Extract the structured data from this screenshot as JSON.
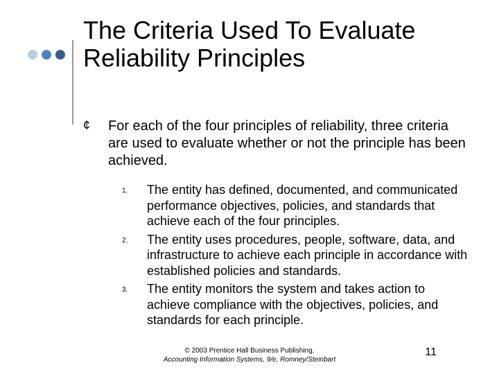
{
  "title": "The Criteria Used To Evaluate Reliability Principles",
  "lead": {
    "bullet": "¢",
    "text": "For each of the four principles of reliability, three criteria are used to evaluate whether or not the principle has been achieved."
  },
  "items": [
    {
      "marker": "1.",
      "text": "The entity has defined, documented, and communicated performance objectives, policies, and standards that achieve each of the four principles."
    },
    {
      "marker": "2.",
      "text": "The entity uses procedures, people, software, data, and infrastructure to achieve each principle in accordance with established policies and standards."
    },
    {
      "marker": "3.",
      "text": "The entity monitors the system and takes action to achieve compliance with the objectives, policies, and standards for each principle."
    }
  ],
  "footer": {
    "line1": "© 2003 Prentice Hall Business Publishing,",
    "line2": "Accounting Information Systems, 9/e, Romney/Steinbart"
  },
  "page_number": "11",
  "colors": {
    "dot_light": "#b9cde5",
    "dot_mid": "#4f81bd",
    "dot_dark": "#385d8a",
    "vline": "#999999",
    "background": "#ffffff",
    "text": "#000000"
  }
}
